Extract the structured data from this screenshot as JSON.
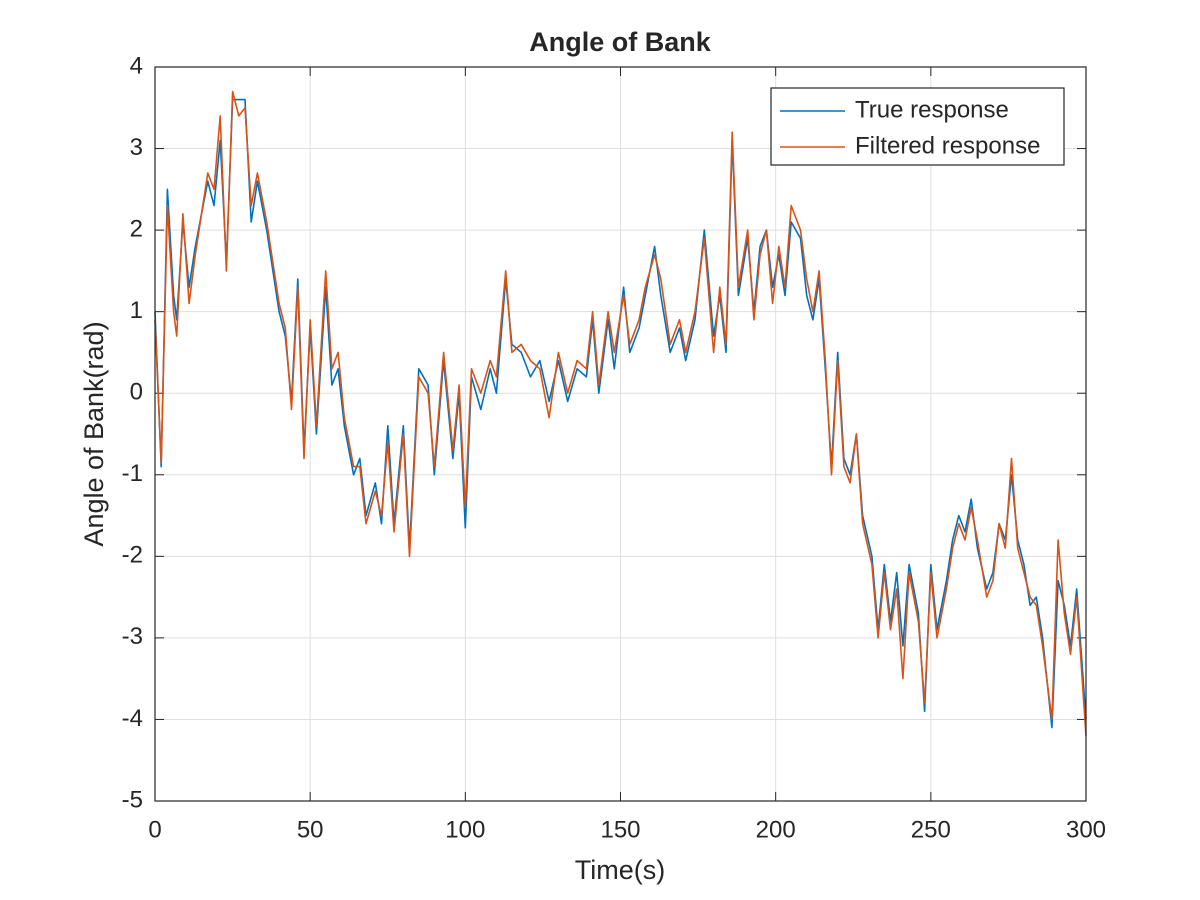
{
  "chart_data": {
    "type": "line",
    "title": "Angle of Bank",
    "xlabel": "Time(s)",
    "ylabel": "Angle of Bank(rad)",
    "x": [
      0,
      2,
      4,
      6,
      7,
      9,
      11,
      13,
      17,
      19,
      21,
      23,
      25,
      27,
      29,
      31,
      33,
      36,
      40,
      42,
      44,
      46,
      48,
      50,
      52,
      55,
      57,
      59,
      61,
      64,
      66,
      68,
      71,
      73,
      75,
      77,
      80,
      82,
      85,
      88,
      90,
      93,
      96,
      98,
      100,
      102,
      105,
      108,
      110,
      113,
      115,
      118,
      121,
      124,
      127,
      130,
      133,
      136,
      139,
      141,
      143,
      146,
      148,
      151,
      153,
      156,
      158,
      161,
      163,
      166,
      169,
      171,
      174,
      177,
      180,
      182,
      184,
      186,
      188,
      191,
      193,
      195,
      197,
      199,
      201,
      203,
      205,
      208,
      210,
      212,
      214,
      216,
      218,
      220,
      222,
      224,
      226,
      228,
      231,
      233,
      235,
      237,
      239,
      241,
      243,
      246,
      248,
      250,
      252,
      255,
      257,
      259,
      261,
      263,
      265,
      268,
      270,
      272,
      274,
      276,
      278,
      280,
      282,
      284,
      286,
      289,
      291,
      293,
      295,
      297,
      300
    ],
    "series": [
      {
        "name": "True response",
        "color": "#0072bd",
        "values": [
          1.0,
          -0.9,
          2.5,
          1.2,
          0.9,
          2.1,
          1.3,
          1.8,
          2.6,
          2.3,
          3.1,
          1.6,
          3.6,
          3.6,
          3.6,
          2.1,
          2.6,
          2.0,
          1.0,
          0.7,
          -0.1,
          1.4,
          -0.7,
          0.8,
          -0.5,
          1.3,
          0.1,
          0.3,
          -0.4,
          -1.0,
          -0.8,
          -1.5,
          -1.1,
          -1.6,
          -0.4,
          -1.6,
          -0.4,
          -1.9,
          0.3,
          0.1,
          -1.0,
          0.4,
          -0.8,
          0.0,
          -1.65,
          0.2,
          -0.2,
          0.3,
          0.0,
          1.4,
          0.6,
          0.5,
          0.2,
          0.4,
          -0.1,
          0.4,
          -0.1,
          0.3,
          0.2,
          0.9,
          0.0,
          0.9,
          0.3,
          1.3,
          0.5,
          0.8,
          1.2,
          1.8,
          1.2,
          0.5,
          0.8,
          0.4,
          0.9,
          2.0,
          0.7,
          1.2,
          0.5,
          3.1,
          1.2,
          1.9,
          1.0,
          1.8,
          2.0,
          1.3,
          1.7,
          1.2,
          2.1,
          1.9,
          1.2,
          0.9,
          1.4,
          0.3,
          -0.9,
          0.5,
          -0.8,
          -1.0,
          -0.5,
          -1.5,
          -2.0,
          -2.9,
          -2.1,
          -2.8,
          -2.2,
          -3.1,
          -2.1,
          -2.7,
          -3.9,
          -2.1,
          -2.9,
          -2.3,
          -1.8,
          -1.5,
          -1.7,
          -1.3,
          -1.9,
          -2.4,
          -2.2,
          -1.6,
          -1.8,
          -1.0,
          -1.8,
          -2.1,
          -2.6,
          -2.5,
          -3.0,
          -4.1,
          -2.3,
          -2.6,
          -3.1,
          -2.4,
          -4.0
        ]
      },
      {
        "name": "Filtered response",
        "color": "#d95319",
        "values": [
          0.9,
          -0.85,
          2.3,
          1.0,
          0.7,
          2.2,
          1.1,
          1.7,
          2.7,
          2.5,
          3.4,
          1.5,
          3.7,
          3.4,
          3.5,
          2.3,
          2.7,
          2.1,
          1.1,
          0.8,
          -0.2,
          1.3,
          -0.8,
          0.9,
          -0.4,
          1.5,
          0.3,
          0.5,
          -0.3,
          -0.9,
          -0.9,
          -1.6,
          -1.2,
          -1.5,
          -0.6,
          -1.7,
          -0.5,
          -2.0,
          0.2,
          0.0,
          -0.9,
          0.5,
          -0.7,
          0.1,
          -1.4,
          0.3,
          0.0,
          0.4,
          0.2,
          1.5,
          0.5,
          0.6,
          0.4,
          0.3,
          -0.3,
          0.5,
          0.0,
          0.4,
          0.3,
          1.0,
          0.1,
          1.0,
          0.5,
          1.2,
          0.6,
          0.9,
          1.3,
          1.7,
          1.4,
          0.6,
          0.9,
          0.5,
          1.0,
          1.9,
          0.5,
          1.3,
          0.6,
          3.2,
          1.3,
          2.0,
          0.9,
          1.7,
          2.0,
          1.1,
          1.8,
          1.3,
          2.3,
          2.0,
          1.4,
          1.0,
          1.5,
          0.4,
          -1.0,
          0.4,
          -0.9,
          -1.1,
          -0.5,
          -1.6,
          -2.1,
          -3.0,
          -2.2,
          -2.9,
          -2.4,
          -3.5,
          -2.2,
          -2.8,
          -3.8,
          -2.2,
          -3.0,
          -2.4,
          -1.9,
          -1.6,
          -1.8,
          -1.4,
          -1.8,
          -2.5,
          -2.3,
          -1.6,
          -1.9,
          -0.8,
          -1.9,
          -2.2,
          -2.5,
          -2.6,
          -3.1,
          -4.0,
          -1.8,
          -2.7,
          -3.2,
          -2.5,
          -4.2
        ]
      }
    ],
    "xlim": [
      0,
      300
    ],
    "xticks": [
      0,
      50,
      100,
      150,
      200,
      250,
      300
    ],
    "ylim": [
      -5,
      4
    ],
    "yticks": [
      -5,
      -4,
      -3,
      -2,
      -1,
      0,
      1,
      2,
      3,
      4
    ],
    "grid": true,
    "legend": "northeast"
  }
}
